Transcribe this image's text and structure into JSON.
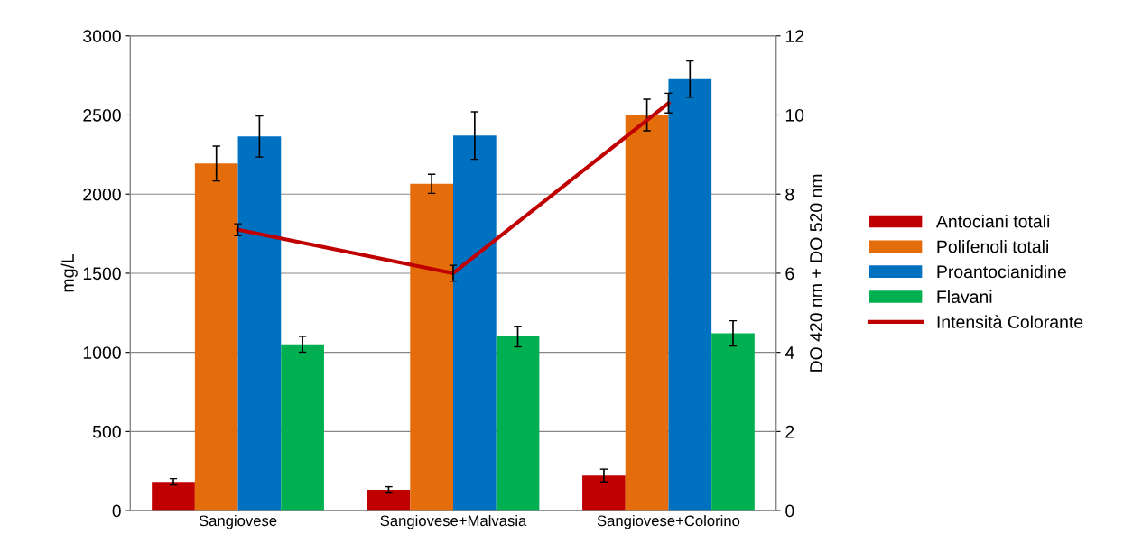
{
  "chart_data": {
    "type": "bar",
    "ylabel": "mg/L",
    "y2label": "DO 420 nm + DO 520 nm",
    "categories": [
      "Sangiovese",
      "Sangiovese+Malvasia",
      "Sangiovese+Colorino"
    ],
    "series": [
      {
        "name": "Antociani totali",
        "color": "#c00000",
        "values": [
          182,
          131,
          222
        ],
        "errors": [
          20,
          20,
          40
        ]
      },
      {
        "name": "Polifenoli totali",
        "color": "#e46c0a",
        "values": [
          2193,
          2065,
          2500
        ],
        "errors": [
          110,
          60,
          100
        ]
      },
      {
        "name": "Proantocianidine",
        "color": "#0070c0",
        "values": [
          2364,
          2370,
          2727
        ],
        "errors": [
          130,
          150,
          115
        ]
      },
      {
        "name": "Flavani",
        "color": "#00b050",
        "values": [
          1051,
          1100,
          1120
        ],
        "errors": [
          50,
          65,
          80
        ]
      },
      {
        "name": "Intensità Colorante",
        "type": "line",
        "axis": "y2",
        "color": "#c00000",
        "values": [
          7.1,
          6.0,
          10.3
        ],
        "errors": [
          0.15,
          0.2,
          0.25
        ]
      }
    ],
    "ylim": [
      0,
      3000
    ],
    "yticks": [
      0,
      500,
      1000,
      1500,
      2000,
      2500,
      3000
    ],
    "y2lim": [
      0,
      12
    ],
    "y2ticks": [
      0,
      2,
      4,
      6,
      8,
      10,
      12
    ],
    "grid": "y",
    "legend": "right",
    "marker": "none"
  }
}
